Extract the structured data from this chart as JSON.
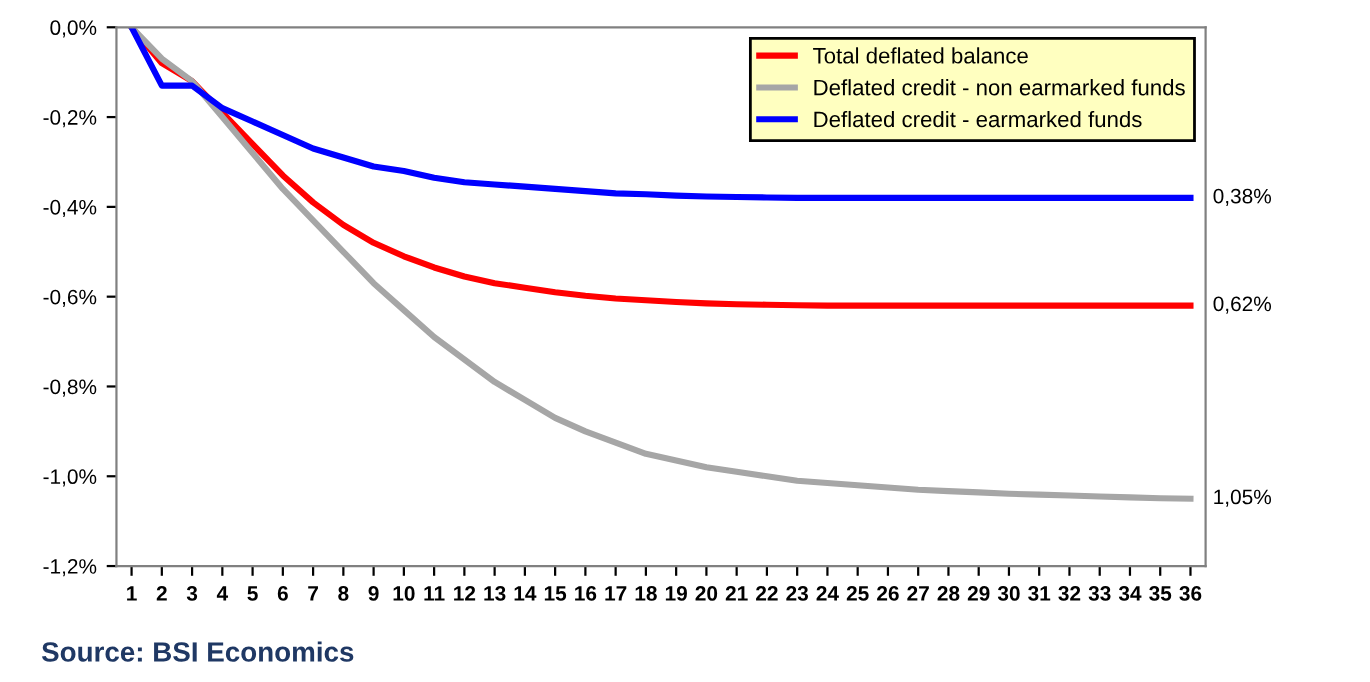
{
  "chart_data": {
    "type": "line",
    "categories": [
      "1",
      "2",
      "3",
      "4",
      "5",
      "6",
      "7",
      "8",
      "9",
      "10",
      "11",
      "12",
      "13",
      "14",
      "15",
      "16",
      "17",
      "18",
      "19",
      "20",
      "21",
      "22",
      "23",
      "24",
      "25",
      "26",
      "27",
      "28",
      "29",
      "30",
      "31",
      "32",
      "33",
      "34",
      "35",
      "36"
    ],
    "series": [
      {
        "name": "Total deflated balance",
        "color": "#ff0000",
        "values": [
          0,
          -0.08,
          -0.12,
          -0.19,
          -0.26,
          -0.33,
          -0.39,
          -0.44,
          -0.48,
          -0.51,
          -0.535,
          -0.555,
          -0.57,
          -0.58,
          -0.59,
          -0.598,
          -0.604,
          -0.608,
          -0.612,
          -0.615,
          -0.617,
          -0.618,
          -0.619,
          -0.62,
          -0.62,
          -0.62,
          -0.62,
          -0.62,
          -0.62,
          -0.62,
          -0.62,
          -0.62,
          -0.62,
          -0.62,
          -0.62,
          -0.62
        ]
      },
      {
        "name": "Deflated credit - non earmarked funds",
        "color": "#a6a6a6",
        "values": [
          0,
          -0.07,
          -0.12,
          -0.2,
          -0.28,
          -0.36,
          -0.43,
          -0.5,
          -0.57,
          -0.63,
          -0.69,
          -0.74,
          -0.79,
          -0.83,
          -0.87,
          -0.9,
          -0.925,
          -0.95,
          -0.965,
          -0.98,
          -0.99,
          -1.0,
          -1.01,
          -1.015,
          -1.02,
          -1.025,
          -1.03,
          -1.033,
          -1.036,
          -1.039,
          -1.041,
          -1.043,
          -1.045,
          -1.047,
          -1.049,
          -1.05
        ]
      },
      {
        "name": "Deflated credit - earmarked funds",
        "color": "#0000ff",
        "values": [
          0,
          -0.13,
          -0.13,
          -0.18,
          -0.21,
          -0.24,
          -0.27,
          -0.29,
          -0.31,
          -0.32,
          -0.335,
          -0.345,
          -0.35,
          -0.355,
          -0.36,
          -0.365,
          -0.37,
          -0.372,
          -0.375,
          -0.377,
          -0.378,
          -0.379,
          -0.38,
          -0.38,
          -0.38,
          -0.38,
          -0.38,
          -0.38,
          -0.38,
          -0.38,
          -0.38,
          -0.38,
          -0.38,
          -0.38,
          -0.38,
          -0.38
        ]
      }
    ],
    "ylim": [
      -1.2,
      0
    ],
    "yticks": [
      {
        "value": -1.2,
        "label": "-1,2%"
      },
      {
        "value": -1.0,
        "label": "-1,0%"
      },
      {
        "value": -0.8,
        "label": "-0,8%"
      },
      {
        "value": -0.6,
        "label": "-0,6%"
      },
      {
        "value": -0.4,
        "label": "-0,4%"
      },
      {
        "value": -0.2,
        "label": "-0,2%"
      },
      {
        "value": 0,
        "label": "0,0%"
      }
    ],
    "annotations": [
      {
        "text": "0,38%",
        "x": "36",
        "y": -0.38
      },
      {
        "text": "0,62%",
        "x": "36",
        "y": -0.62
      },
      {
        "text": "1,05%",
        "x": "36",
        "y": -1.05
      },
      "Source: BSI Economics"
    ],
    "grid": false,
    "legend": "top right",
    "line_style": "solid",
    "marker": "none"
  }
}
